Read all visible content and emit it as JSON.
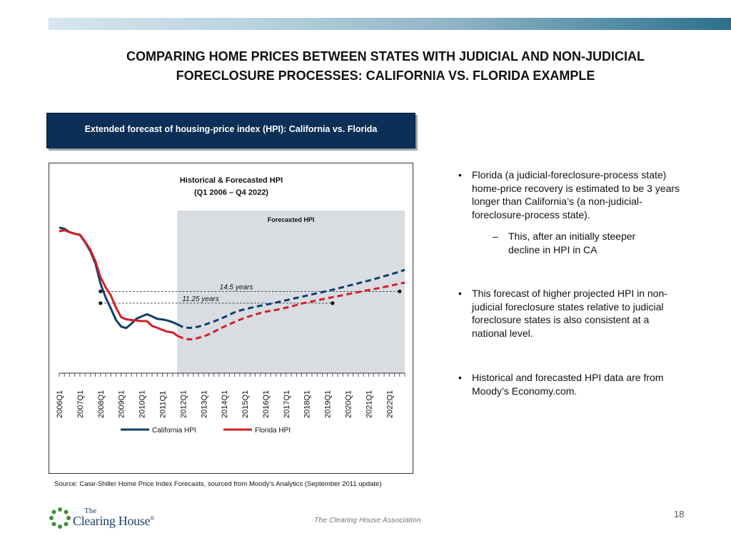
{
  "slide": {
    "title_line1": "COMPARING HOME PRICES BETWEEN STATES WITH JUDICIAL AND NON-JUDICIAL",
    "title_line2": "FORECLOSURE PROCESSES:  CALIFORNIA VS. FLORIDA EXAMPLE",
    "banner": "Extended forecast of housing-price index (HPI):  California vs. Florida",
    "source": "Source:  Case-Shiller Home Price Index Forecasts, sourced from Moody’s Analytics (September 2011 update)",
    "footer": "The Clearing House Association",
    "page_number": "18",
    "logo_the": "The",
    "logo_name": "Clearing House",
    "logo_tm": "®"
  },
  "bullets": [
    {
      "text": "Florida (a judicial-foreclosure-process state) home-price recovery is estimated to be 3 years longer than California’s (a non-judicial-foreclosure-process state)."
    },
    {
      "sub": "This, after an initially steeper decline in HPI in CA"
    },
    {
      "text": "This forecast of higher projected HPI in non-judicial foreclosure states relative to judicial foreclosure states is also consistent at a national level."
    },
    {
      "text": "Historical and forecasted HPI data are from Moody’s Economy.com."
    }
  ],
  "chart_data": {
    "type": "line",
    "title": "Historical & Forecasted HPI",
    "subtitle": "(Q1 2006 – Q4 2022)",
    "shaded_region_label": "Forecasted HPI",
    "forecast_start": 2011.75,
    "x_range": [
      2006.0,
      2022.75
    ],
    "y_range": [
      0,
      100
    ],
    "y_axis_shown": false,
    "tick_labels": [
      "2006Q1",
      "2007Q1",
      "2008Q1",
      "2009Q1",
      "2010Q1",
      "2011Q1",
      "2012Q1",
      "2013Q1",
      "2014Q1",
      "2015Q1",
      "2016Q1",
      "2017Q1",
      "2018Q1",
      "2019Q1",
      "2020Q1",
      "2021Q1",
      "2022Q1"
    ],
    "legend": [
      "California HPI",
      "Florida HPI"
    ],
    "annotations": [
      {
        "label": "14.5 years",
        "y": 56.2,
        "from": 2008.0,
        "to": 2022.5
      },
      {
        "label": "11.25 years",
        "y": 48.1,
        "from": 2008.0,
        "to": 2019.25
      }
    ],
    "series": [
      {
        "name": "California HPI",
        "color": "#0d3f6e",
        "points": [
          [
            2006.0,
            100
          ],
          [
            2006.25,
            99.2
          ],
          [
            2006.5,
            96.9
          ],
          [
            2006.75,
            95.8
          ],
          [
            2007.0,
            95
          ],
          [
            2007.25,
            90
          ],
          [
            2007.5,
            84
          ],
          [
            2007.75,
            75.5
          ],
          [
            2008.0,
            61.5
          ],
          [
            2008.25,
            52
          ],
          [
            2008.5,
            44.5
          ],
          [
            2008.75,
            36.5
          ],
          [
            2009.0,
            32
          ],
          [
            2009.25,
            31
          ],
          [
            2009.5,
            34
          ],
          [
            2009.75,
            37.5
          ],
          [
            2010.0,
            39
          ],
          [
            2010.25,
            40.5
          ],
          [
            2010.5,
            39
          ],
          [
            2010.75,
            37.3
          ],
          [
            2011.0,
            36.9
          ],
          [
            2011.25,
            36.2
          ],
          [
            2011.5,
            35
          ],
          [
            2011.75,
            33.5
          ],
          [
            2012.0,
            31.6
          ],
          [
            2012.25,
            31.2
          ],
          [
            2012.5,
            31.2
          ],
          [
            2012.75,
            32
          ],
          [
            2013.0,
            33
          ],
          [
            2013.25,
            34.3
          ],
          [
            2013.5,
            35.5
          ],
          [
            2013.75,
            37
          ],
          [
            2014.0,
            38.5
          ],
          [
            2014.25,
            40.2
          ],
          [
            2014.5,
            41.8
          ],
          [
            2014.75,
            43
          ],
          [
            2015.0,
            44
          ],
          [
            2015.25,
            44.8
          ],
          [
            2015.5,
            45.6
          ],
          [
            2015.75,
            46.3
          ],
          [
            2016.0,
            47
          ],
          [
            2016.25,
            47.7
          ],
          [
            2016.5,
            48.5
          ],
          [
            2016.75,
            49.3
          ],
          [
            2017.0,
            50.1
          ],
          [
            2017.25,
            50.9
          ],
          [
            2017.5,
            51.7
          ],
          [
            2017.75,
            52.5
          ],
          [
            2018.0,
            53.3
          ],
          [
            2018.25,
            54.1
          ],
          [
            2018.5,
            54.9
          ],
          [
            2018.75,
            55.7
          ],
          [
            2019.0,
            56.5
          ],
          [
            2019.25,
            57.3
          ],
          [
            2019.5,
            58.2
          ],
          [
            2019.75,
            59.1
          ],
          [
            2020.0,
            60
          ],
          [
            2020.25,
            60.9
          ],
          [
            2020.5,
            61.8
          ],
          [
            2020.75,
            62.7
          ],
          [
            2021.0,
            63.6
          ],
          [
            2021.25,
            64.6
          ],
          [
            2021.5,
            65.6
          ],
          [
            2021.75,
            66.6
          ],
          [
            2022.0,
            67.6
          ],
          [
            2022.25,
            68.7
          ],
          [
            2022.5,
            69.8
          ],
          [
            2022.75,
            71
          ]
        ]
      },
      {
        "name": "Florida HPI",
        "color": "#d31f26",
        "points": [
          [
            2006.0,
            97.5
          ],
          [
            2006.25,
            98.3
          ],
          [
            2006.5,
            96.8
          ],
          [
            2006.75,
            95.8
          ],
          [
            2007.0,
            95.2
          ],
          [
            2007.25,
            90.5
          ],
          [
            2007.5,
            85
          ],
          [
            2007.75,
            77
          ],
          [
            2008.0,
            66
          ],
          [
            2008.25,
            59
          ],
          [
            2008.5,
            53.5
          ],
          [
            2008.75,
            45
          ],
          [
            2009.0,
            38.5
          ],
          [
            2009.25,
            37
          ],
          [
            2009.5,
            36.5
          ],
          [
            2009.75,
            36.2
          ],
          [
            2010.0,
            35.8
          ],
          [
            2010.25,
            35.8
          ],
          [
            2010.5,
            32.5
          ],
          [
            2010.75,
            31.2
          ],
          [
            2011.0,
            29.7
          ],
          [
            2011.25,
            28.5
          ],
          [
            2011.5,
            28
          ],
          [
            2011.75,
            25.5
          ],
          [
            2012.0,
            24
          ],
          [
            2012.25,
            23.3
          ],
          [
            2012.5,
            23.3
          ],
          [
            2012.75,
            24.3
          ],
          [
            2013.0,
            25.2
          ],
          [
            2013.25,
            26.7
          ],
          [
            2013.5,
            28.5
          ],
          [
            2013.75,
            30.3
          ],
          [
            2014.0,
            32
          ],
          [
            2014.25,
            33.6
          ],
          [
            2014.5,
            35.2
          ],
          [
            2014.75,
            36.7
          ],
          [
            2015.0,
            38
          ],
          [
            2015.25,
            39.2
          ],
          [
            2015.5,
            40.3
          ],
          [
            2015.75,
            41.3
          ],
          [
            2016.0,
            42.2
          ],
          [
            2016.25,
            42.9
          ],
          [
            2016.5,
            43.5
          ],
          [
            2016.75,
            44.2
          ],
          [
            2017.0,
            45
          ],
          [
            2017.25,
            45.9
          ],
          [
            2017.5,
            46.8
          ],
          [
            2017.75,
            47.8
          ],
          [
            2018.0,
            48.6
          ],
          [
            2018.25,
            49.3
          ],
          [
            2018.5,
            50
          ],
          [
            2018.75,
            50.8
          ],
          [
            2019.0,
            51.5
          ],
          [
            2019.25,
            52.2
          ],
          [
            2019.5,
            52.9
          ],
          [
            2019.75,
            53.6
          ],
          [
            2020.0,
            54.3
          ],
          [
            2020.25,
            55
          ],
          [
            2020.5,
            55.7
          ],
          [
            2020.75,
            56.4
          ],
          [
            2021.0,
            57.1
          ],
          [
            2021.25,
            57.8
          ],
          [
            2021.5,
            58.5
          ],
          [
            2021.75,
            59.2
          ],
          [
            2022.0,
            59.9
          ],
          [
            2022.25,
            60.7
          ],
          [
            2022.5,
            61.5
          ],
          [
            2022.75,
            62.2
          ]
        ]
      }
    ]
  }
}
